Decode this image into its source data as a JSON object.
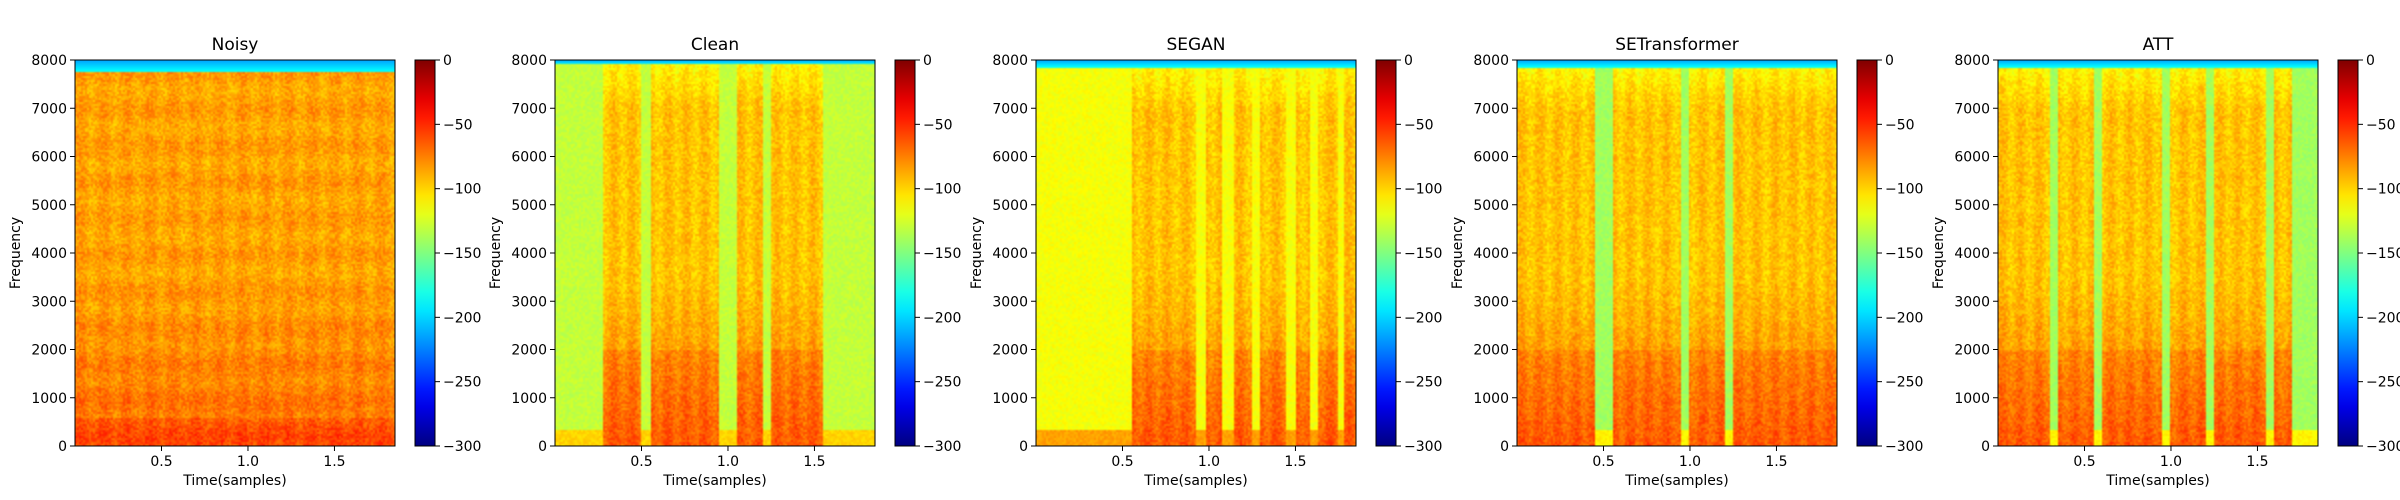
{
  "chart_data": [
    {
      "type": "heatmap",
      "title": "Noisy",
      "xlabel": "Time(samples)",
      "ylabel": "Frequency",
      "xlim": [
        0.0,
        1.85
      ],
      "ylim": [
        0,
        8000
      ],
      "xticks": [
        0.5,
        1.0,
        1.5
      ],
      "xtick_labels": [
        "0.5",
        "1.0",
        "1.5"
      ],
      "yticks": [
        0,
        1000,
        2000,
        3000,
        4000,
        5000,
        6000,
        7000,
        8000
      ],
      "ytick_labels": [
        "0",
        "1000",
        "2000",
        "3000",
        "4000",
        "5000",
        "6000",
        "7000",
        "8000"
      ],
      "colorbar": {
        "range": [
          -300,
          0
        ],
        "ticks": [
          0,
          -50,
          -100,
          -150,
          -200,
          -250,
          -300
        ],
        "tick_labels": [
          "0",
          "−50",
          "−100",
          "−150",
          "−200",
          "−250",
          "−300"
        ],
        "colormap": "jet"
      },
      "cutoff_hz": 7750,
      "background_level": -90,
      "speech_segments": [],
      "noise_broadband": true
    },
    {
      "type": "heatmap",
      "title": "Clean",
      "xlabel": "Time(samples)",
      "ylabel": "Frequency",
      "xlim": [
        0.0,
        1.85
      ],
      "ylim": [
        0,
        8000
      ],
      "xticks": [
        0.5,
        1.0,
        1.5
      ],
      "xtick_labels": [
        "0.5",
        "1.0",
        "1.5"
      ],
      "yticks": [
        0,
        1000,
        2000,
        3000,
        4000,
        5000,
        6000,
        7000,
        8000
      ],
      "ytick_labels": [
        "0",
        "1000",
        "2000",
        "3000",
        "4000",
        "5000",
        "6000",
        "7000",
        "8000"
      ],
      "colorbar": {
        "range": [
          -300,
          0
        ],
        "ticks": [
          0,
          -50,
          -100,
          -150,
          -200,
          -250,
          -300
        ],
        "tick_labels": [
          "0",
          "−50",
          "−100",
          "−150",
          "−200",
          "−250",
          "−300"
        ],
        "colormap": "jet"
      },
      "cutoff_hz": 7900,
      "background_level": -130,
      "speech_segments": [
        [
          0.28,
          0.5
        ],
        [
          0.55,
          0.95
        ],
        [
          1.05,
          1.2
        ],
        [
          1.25,
          1.55
        ]
      ]
    },
    {
      "type": "heatmap",
      "title": "SEGAN",
      "xlabel": "Time(samples)",
      "ylabel": "Frequency",
      "xlim": [
        0.0,
        1.85
      ],
      "ylim": [
        0,
        8000
      ],
      "xticks": [
        0.5,
        1.0,
        1.5
      ],
      "xtick_labels": [
        "0.5",
        "1.0",
        "1.5"
      ],
      "yticks": [
        0,
        1000,
        2000,
        3000,
        4000,
        5000,
        6000,
        7000,
        8000
      ],
      "ytick_labels": [
        "0",
        "1000",
        "2000",
        "3000",
        "4000",
        "5000",
        "6000",
        "7000",
        "8000"
      ],
      "colorbar": {
        "range": [
          -300,
          0
        ],
        "ticks": [
          0,
          -50,
          -100,
          -150,
          -200,
          -250,
          -300
        ],
        "tick_labels": [
          "0",
          "−50",
          "−100",
          "−150",
          "−200",
          "−250",
          "−300"
        ],
        "colormap": "jet"
      },
      "cutoff_hz": 7850,
      "background_level": -115,
      "speech_segments": [
        [
          0.55,
          0.92
        ],
        [
          0.98,
          1.08
        ],
        [
          1.15,
          1.25
        ],
        [
          1.3,
          1.45
        ],
        [
          1.5,
          1.58
        ],
        [
          1.63,
          1.75
        ],
        [
          1.78,
          1.85
        ]
      ]
    },
    {
      "type": "heatmap",
      "title": "SETransformer",
      "xlabel": "Time(samples)",
      "ylabel": "Frequency",
      "xlim": [
        0.0,
        1.85
      ],
      "ylim": [
        0,
        8000
      ],
      "xticks": [
        0.5,
        1.0,
        1.5
      ],
      "xtick_labels": [
        "0.5",
        "1.0",
        "1.5"
      ],
      "yticks": [
        0,
        1000,
        2000,
        3000,
        4000,
        5000,
        6000,
        7000,
        8000
      ],
      "ytick_labels": [
        "0",
        "1000",
        "2000",
        "3000",
        "4000",
        "5000",
        "6000",
        "7000",
        "8000"
      ],
      "colorbar": {
        "range": [
          -300,
          0
        ],
        "ticks": [
          0,
          -50,
          -100,
          -150,
          -200,
          -250,
          -300
        ],
        "tick_labels": [
          "0",
          "−50",
          "−100",
          "−150",
          "−200",
          "−250",
          "−300"
        ],
        "colormap": "jet"
      },
      "cutoff_hz": 7850,
      "background_level": -140,
      "speech_segments": [
        [
          0.0,
          0.45
        ],
        [
          0.55,
          0.95
        ],
        [
          1.0,
          1.2
        ],
        [
          1.25,
          1.85
        ]
      ]
    },
    {
      "type": "heatmap",
      "title": "ATT",
      "xlabel": "Time(samples)",
      "ylabel": "Frequency",
      "xlim": [
        0.0,
        1.85
      ],
      "ylim": [
        0,
        8000
      ],
      "xticks": [
        0.5,
        1.0,
        1.5
      ],
      "xtick_labels": [
        "0.5",
        "1.0",
        "1.5"
      ],
      "yticks": [
        0,
        1000,
        2000,
        3000,
        4000,
        5000,
        6000,
        7000,
        8000
      ],
      "ytick_labels": [
        "0",
        "1000",
        "2000",
        "3000",
        "4000",
        "5000",
        "6000",
        "7000",
        "8000"
      ],
      "colorbar": {
        "range": [
          -300,
          0
        ],
        "ticks": [
          0,
          -50,
          -100,
          -150,
          -200,
          -250,
          -300
        ],
        "tick_labels": [
          "0",
          "−50",
          "−100",
          "−150",
          "−200",
          "−250",
          "−300"
        ],
        "colormap": "jet"
      },
      "cutoff_hz": 7850,
      "background_level": -140,
      "speech_segments": [
        [
          0.0,
          0.3
        ],
        [
          0.35,
          0.55
        ],
        [
          0.6,
          0.95
        ],
        [
          1.0,
          1.2
        ],
        [
          1.25,
          1.55
        ],
        [
          1.6,
          1.7
        ]
      ]
    }
  ]
}
